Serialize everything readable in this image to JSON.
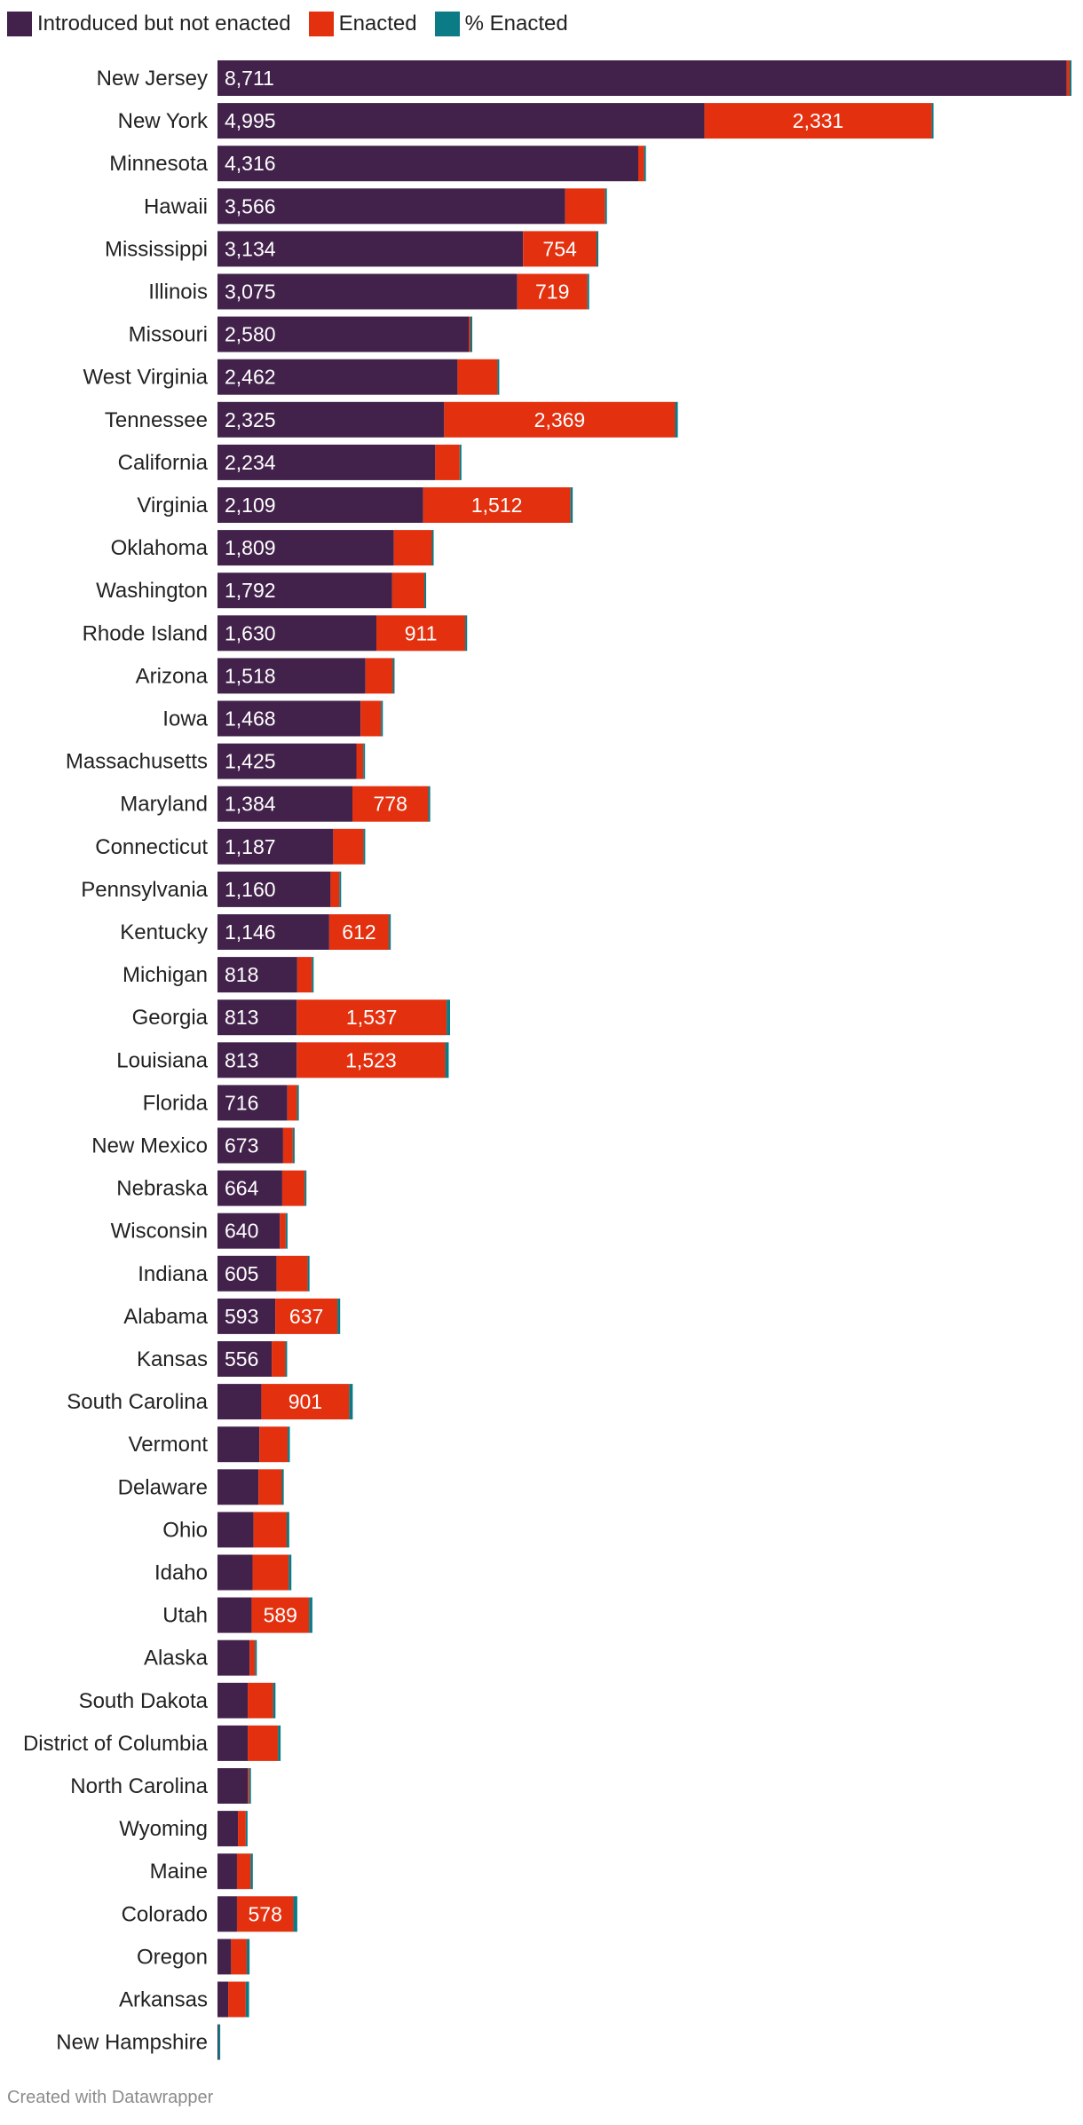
{
  "legend": [
    {
      "label": "Introduced but not enacted",
      "color": "#42224b"
    },
    {
      "label": "Enacted",
      "color": "#e3300f"
    },
    {
      "label": "% Enacted",
      "color": "#0b7b86"
    }
  ],
  "credit": "Created with Datawrapper",
  "chart_data": {
    "type": "bar",
    "orientation": "horizontal",
    "stacked": true,
    "grid": false,
    "legend_position": "top-left",
    "categories": [
      "New Jersey",
      "New York",
      "Minnesota",
      "Hawaii",
      "Mississippi",
      "Illinois",
      "Missouri",
      "West Virginia",
      "Tennessee",
      "California",
      "Virginia",
      "Oklahoma",
      "Washington",
      "Rhode Island",
      "Arizona",
      "Iowa",
      "Massachusetts",
      "Maryland",
      "Connecticut",
      "Pennsylvania",
      "Kentucky",
      "Michigan",
      "Georgia",
      "Louisiana",
      "Florida",
      "New Mexico",
      "Nebraska",
      "Wisconsin",
      "Indiana",
      "Alabama",
      "Kansas",
      "South Carolina",
      "Vermont",
      "Delaware",
      "Ohio",
      "Idaho",
      "Utah",
      "Alaska",
      "South Dakota",
      "District of Columbia",
      "North Carolina",
      "Wyoming",
      "Maine",
      "Colorado",
      "Oregon",
      "Arkansas",
      "New Hampshire"
    ],
    "series": [
      {
        "name": "Introduced but not enacted",
        "color": "#42224b",
        "values": [
          8711,
          4995,
          4316,
          3566,
          3134,
          3075,
          2580,
          2462,
          2325,
          2234,
          2109,
          1809,
          1792,
          1630,
          1518,
          1468,
          1425,
          1384,
          1187,
          1160,
          1146,
          818,
          813,
          813,
          716,
          673,
          664,
          640,
          605,
          593,
          556,
          450,
          430,
          420,
          370,
          360,
          350,
          330,
          310,
          310,
          310,
          210,
          200,
          200,
          140,
          110,
          10
        ]
      },
      {
        "name": "Enacted",
        "color": "#e3300f",
        "values": [
          30,
          2331,
          60,
          410,
          754,
          719,
          15,
          410,
          2369,
          250,
          1512,
          390,
          330,
          911,
          280,
          210,
          70,
          778,
          310,
          90,
          612,
          150,
          1537,
          1523,
          100,
          100,
          230,
          60,
          320,
          637,
          140,
          901,
          290,
          240,
          340,
          370,
          589,
          55,
          260,
          310,
          15,
          80,
          140,
          578,
          160,
          180,
          0
        ]
      },
      {
        "name": "% Enacted",
        "color": "#0b7b86",
        "values": [
          0.3,
          31.8,
          1.4,
          10.3,
          19.4,
          19.0,
          0.6,
          14.3,
          50.5,
          10.1,
          41.8,
          17.7,
          15.6,
          35.9,
          15.6,
          12.5,
          4.7,
          36.0,
          20.7,
          7.2,
          34.8,
          15.5,
          65.4,
          65.2,
          12.3,
          12.9,
          25.7,
          8.6,
          34.6,
          51.8,
          20.1,
          66.7,
          40.3,
          35.8,
          47.9,
          50.7,
          62.7,
          14.3,
          45.6,
          50.0,
          4.6,
          27.6,
          41.2,
          74.3,
          53.3,
          62.1,
          0.0
        ]
      }
    ],
    "value_labels": [
      {
        "introduced": "8,711",
        "enacted": ""
      },
      {
        "introduced": "4,995",
        "enacted": "2,331"
      },
      {
        "introduced": "4,316",
        "enacted": ""
      },
      {
        "introduced": "3,566",
        "enacted": ""
      },
      {
        "introduced": "3,134",
        "enacted": "754"
      },
      {
        "introduced": "3,075",
        "enacted": "719"
      },
      {
        "introduced": "2,580",
        "enacted": ""
      },
      {
        "introduced": "2,462",
        "enacted": ""
      },
      {
        "introduced": "2,325",
        "enacted": "2,369"
      },
      {
        "introduced": "2,234",
        "enacted": ""
      },
      {
        "introduced": "2,109",
        "enacted": "1,512"
      },
      {
        "introduced": "1,809",
        "enacted": ""
      },
      {
        "introduced": "1,792",
        "enacted": ""
      },
      {
        "introduced": "1,630",
        "enacted": "911"
      },
      {
        "introduced": "1,518",
        "enacted": ""
      },
      {
        "introduced": "1,468",
        "enacted": ""
      },
      {
        "introduced": "1,425",
        "enacted": ""
      },
      {
        "introduced": "1,384",
        "enacted": "778"
      },
      {
        "introduced": "1,187",
        "enacted": ""
      },
      {
        "introduced": "1,160",
        "enacted": ""
      },
      {
        "introduced": "1,146",
        "enacted": "612"
      },
      {
        "introduced": "818",
        "enacted": ""
      },
      {
        "introduced": "813",
        "enacted": "1,537"
      },
      {
        "introduced": "813",
        "enacted": "1,523"
      },
      {
        "introduced": "716",
        "enacted": ""
      },
      {
        "introduced": "673",
        "enacted": ""
      },
      {
        "introduced": "664",
        "enacted": ""
      },
      {
        "introduced": "640",
        "enacted": ""
      },
      {
        "introduced": "605",
        "enacted": ""
      },
      {
        "introduced": "593",
        "enacted": "637"
      },
      {
        "introduced": "556",
        "enacted": ""
      },
      {
        "introduced": "",
        "enacted": "901"
      },
      {
        "introduced": "",
        "enacted": ""
      },
      {
        "introduced": "",
        "enacted": ""
      },
      {
        "introduced": "",
        "enacted": ""
      },
      {
        "introduced": "",
        "enacted": ""
      },
      {
        "introduced": "",
        "enacted": "589"
      },
      {
        "introduced": "",
        "enacted": ""
      },
      {
        "introduced": "",
        "enacted": ""
      },
      {
        "introduced": "",
        "enacted": ""
      },
      {
        "introduced": "",
        "enacted": ""
      },
      {
        "introduced": "",
        "enacted": ""
      },
      {
        "introduced": "",
        "enacted": ""
      },
      {
        "introduced": "",
        "enacted": "578"
      },
      {
        "introduced": "",
        "enacted": ""
      },
      {
        "introduced": "",
        "enacted": ""
      },
      {
        "introduced": "",
        "enacted": ""
      }
    ]
  }
}
